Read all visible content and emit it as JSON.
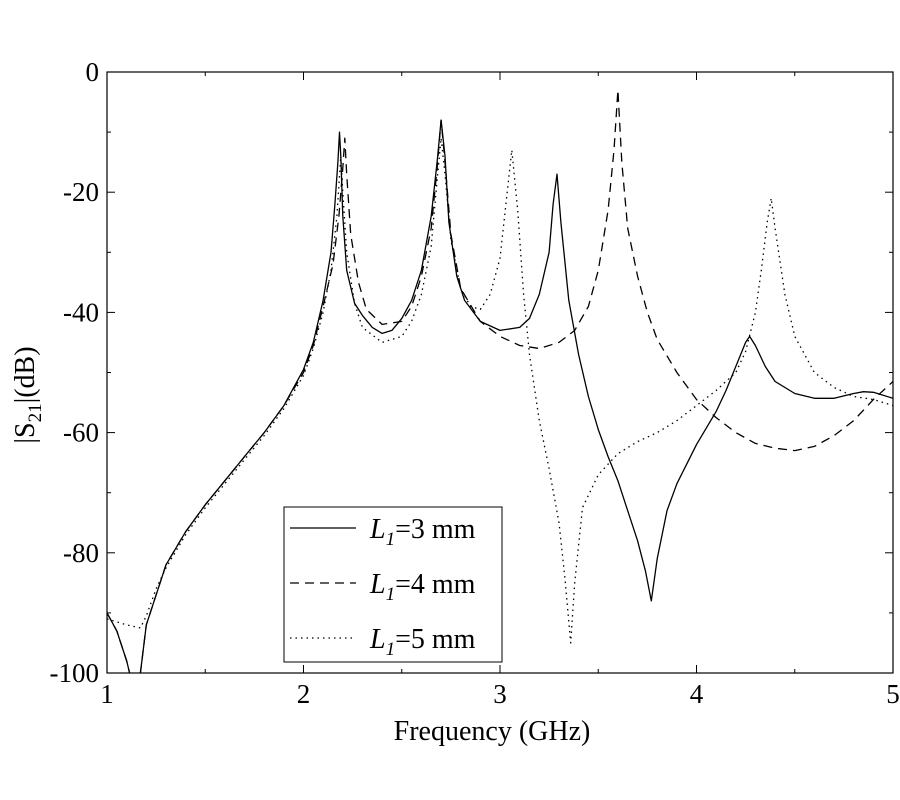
{
  "chart_data": {
    "type": "line",
    "xlabel": "Frequency (GHz)",
    "ylabel": "|S",
    "ylabel_sub": "21",
    "ylabel_suffix": "|(dB)",
    "xlim": [
      1,
      5
    ],
    "ylim": [
      -100,
      0
    ],
    "x_ticks": [
      1,
      2,
      3,
      4,
      5
    ],
    "y_ticks": [
      0,
      -20,
      -40,
      -60,
      -80,
      -100
    ],
    "grid": false,
    "legend_position": "bottom-left",
    "series": [
      {
        "name_main": "L",
        "name_sub": "1",
        "name_suffix": "=3 mm",
        "dash": "solid",
        "points": [
          [
            1.0,
            -90
          ],
          [
            1.05,
            -93
          ],
          [
            1.1,
            -98
          ],
          [
            1.13,
            -102
          ],
          [
            1.17,
            -100
          ],
          [
            1.2,
            -92
          ],
          [
            1.3,
            -82
          ],
          [
            1.4,
            -76.5
          ],
          [
            1.5,
            -72
          ],
          [
            1.6,
            -68
          ],
          [
            1.7,
            -64
          ],
          [
            1.8,
            -60
          ],
          [
            1.9,
            -55.5
          ],
          [
            2.0,
            -49.5
          ],
          [
            2.05,
            -45
          ],
          [
            2.1,
            -38
          ],
          [
            2.14,
            -30
          ],
          [
            2.16,
            -22
          ],
          [
            2.175,
            -15
          ],
          [
            2.183,
            -10
          ],
          [
            2.19,
            -14
          ],
          [
            2.2,
            -24
          ],
          [
            2.22,
            -33
          ],
          [
            2.26,
            -38.5
          ],
          [
            2.3,
            -40.5
          ],
          [
            2.35,
            -42.5
          ],
          [
            2.4,
            -43.5
          ],
          [
            2.45,
            -43
          ],
          [
            2.5,
            -41
          ],
          [
            2.55,
            -38
          ],
          [
            2.6,
            -33
          ],
          [
            2.65,
            -24
          ],
          [
            2.68,
            -15
          ],
          [
            2.7,
            -8
          ],
          [
            2.72,
            -14
          ],
          [
            2.74,
            -25
          ],
          [
            2.78,
            -34
          ],
          [
            2.82,
            -38
          ],
          [
            2.9,
            -41.5
          ],
          [
            3.0,
            -43
          ],
          [
            3.1,
            -42.5
          ],
          [
            3.15,
            -41
          ],
          [
            3.2,
            -37
          ],
          [
            3.25,
            -30
          ],
          [
            3.27,
            -22
          ],
          [
            3.29,
            -17
          ],
          [
            3.31,
            -25
          ],
          [
            3.35,
            -38
          ],
          [
            3.4,
            -47
          ],
          [
            3.45,
            -54
          ],
          [
            3.5,
            -59.5
          ],
          [
            3.55,
            -64
          ],
          [
            3.6,
            -68
          ],
          [
            3.65,
            -73
          ],
          [
            3.7,
            -78
          ],
          [
            3.74,
            -83
          ],
          [
            3.77,
            -88
          ],
          [
            3.8,
            -81
          ],
          [
            3.85,
            -73
          ],
          [
            3.9,
            -68.5
          ],
          [
            4.0,
            -62
          ],
          [
            4.1,
            -56.5
          ],
          [
            4.15,
            -53
          ],
          [
            4.2,
            -49
          ],
          [
            4.25,
            -45
          ],
          [
            4.27,
            -44
          ],
          [
            4.3,
            -45.5
          ],
          [
            4.35,
            -49
          ],
          [
            4.4,
            -51.5
          ],
          [
            4.5,
            -53.5
          ],
          [
            4.6,
            -54.3
          ],
          [
            4.7,
            -54.3
          ],
          [
            4.8,
            -53.5
          ],
          [
            4.85,
            -53.2
          ],
          [
            4.9,
            -53.3
          ],
          [
            4.95,
            -53.8
          ],
          [
            5.0,
            -54.3
          ]
        ]
      },
      {
        "name_main": "L",
        "name_sub": "1",
        "name_suffix": "=4 mm",
        "dash": "dashed",
        "points": [
          [
            1.0,
            -90
          ],
          [
            1.05,
            -93
          ],
          [
            1.1,
            -98
          ],
          [
            1.13,
            -102
          ],
          [
            1.17,
            -100
          ],
          [
            1.2,
            -92
          ],
          [
            1.3,
            -82
          ],
          [
            1.4,
            -76.5
          ],
          [
            1.5,
            -72
          ],
          [
            1.6,
            -68
          ],
          [
            1.7,
            -64
          ],
          [
            1.8,
            -60
          ],
          [
            1.9,
            -55.5
          ],
          [
            2.0,
            -50
          ],
          [
            2.05,
            -45.5
          ],
          [
            2.1,
            -39
          ],
          [
            2.15,
            -32
          ],
          [
            2.18,
            -24
          ],
          [
            2.2,
            -16
          ],
          [
            2.21,
            -11
          ],
          [
            2.22,
            -17
          ],
          [
            2.24,
            -27
          ],
          [
            2.28,
            -35
          ],
          [
            2.32,
            -39.5
          ],
          [
            2.4,
            -42
          ],
          [
            2.5,
            -41.5
          ],
          [
            2.55,
            -39
          ],
          [
            2.6,
            -34
          ],
          [
            2.65,
            -26
          ],
          [
            2.68,
            -16
          ],
          [
            2.7,
            -8
          ],
          [
            2.72,
            -15
          ],
          [
            2.75,
            -27
          ],
          [
            2.8,
            -36
          ],
          [
            2.9,
            -41.5
          ],
          [
            3.0,
            -44
          ],
          [
            3.1,
            -45.5
          ],
          [
            3.2,
            -46
          ],
          [
            3.3,
            -45
          ],
          [
            3.38,
            -43
          ],
          [
            3.45,
            -39
          ],
          [
            3.5,
            -33
          ],
          [
            3.55,
            -23
          ],
          [
            3.58,
            -13
          ],
          [
            3.6,
            -3
          ],
          [
            3.62,
            -15
          ],
          [
            3.65,
            -26
          ],
          [
            3.7,
            -34
          ],
          [
            3.75,
            -40
          ],
          [
            3.8,
            -44.5
          ],
          [
            3.9,
            -50
          ],
          [
            4.0,
            -54.5
          ],
          [
            4.1,
            -57.5
          ],
          [
            4.2,
            -60
          ],
          [
            4.3,
            -61.8
          ],
          [
            4.4,
            -62.6
          ],
          [
            4.5,
            -63
          ],
          [
            4.6,
            -62.3
          ],
          [
            4.7,
            -60.5
          ],
          [
            4.8,
            -58
          ],
          [
            4.9,
            -54.5
          ],
          [
            5.0,
            -51.5
          ]
        ]
      },
      {
        "name_main": "L",
        "name_sub": "1",
        "name_suffix": "=5 mm",
        "dash": "dotted",
        "points": [
          [
            1.0,
            -91
          ],
          [
            1.1,
            -92
          ],
          [
            1.17,
            -92.5
          ],
          [
            1.2,
            -90.5
          ],
          [
            1.25,
            -86
          ],
          [
            1.3,
            -82.5
          ],
          [
            1.4,
            -77
          ],
          [
            1.5,
            -72.5
          ],
          [
            1.6,
            -68.5
          ],
          [
            1.7,
            -64.5
          ],
          [
            1.8,
            -60.5
          ],
          [
            1.9,
            -56
          ],
          [
            2.0,
            -50.5
          ],
          [
            2.05,
            -46
          ],
          [
            2.1,
            -40
          ],
          [
            2.14,
            -33
          ],
          [
            2.17,
            -24
          ],
          [
            2.19,
            -14
          ],
          [
            2.2,
            -20
          ],
          [
            2.22,
            -30
          ],
          [
            2.26,
            -38.5
          ],
          [
            2.3,
            -42.5
          ],
          [
            2.4,
            -45
          ],
          [
            2.5,
            -44
          ],
          [
            2.55,
            -41.5
          ],
          [
            2.6,
            -37
          ],
          [
            2.65,
            -29
          ],
          [
            2.68,
            -18
          ],
          [
            2.7,
            -11
          ],
          [
            2.72,
            -17
          ],
          [
            2.75,
            -28
          ],
          [
            2.8,
            -36
          ],
          [
            2.85,
            -39
          ],
          [
            2.9,
            -39.5
          ],
          [
            2.95,
            -37
          ],
          [
            3.0,
            -31
          ],
          [
            3.03,
            -22
          ],
          [
            3.06,
            -13
          ],
          [
            3.09,
            -23
          ],
          [
            3.12,
            -37
          ],
          [
            3.15,
            -47
          ],
          [
            3.2,
            -58
          ],
          [
            3.25,
            -66
          ],
          [
            3.3,
            -75
          ],
          [
            3.33,
            -84
          ],
          [
            3.36,
            -95
          ],
          [
            3.38,
            -85
          ],
          [
            3.42,
            -72.5
          ],
          [
            3.5,
            -67
          ],
          [
            3.6,
            -63.5
          ],
          [
            3.7,
            -61.5
          ],
          [
            3.8,
            -60
          ],
          [
            3.9,
            -58
          ],
          [
            4.0,
            -55.5
          ],
          [
            4.1,
            -53
          ],
          [
            4.2,
            -50
          ],
          [
            4.25,
            -46.5
          ],
          [
            4.3,
            -40
          ],
          [
            4.33,
            -33
          ],
          [
            4.36,
            -25
          ],
          [
            4.38,
            -21
          ],
          [
            4.4,
            -26
          ],
          [
            4.45,
            -37
          ],
          [
            4.5,
            -44
          ],
          [
            4.6,
            -50
          ],
          [
            4.7,
            -52.5
          ],
          [
            4.8,
            -54
          ],
          [
            4.9,
            -54.5
          ],
          [
            5.0,
            -55.5
          ]
        ]
      }
    ]
  }
}
